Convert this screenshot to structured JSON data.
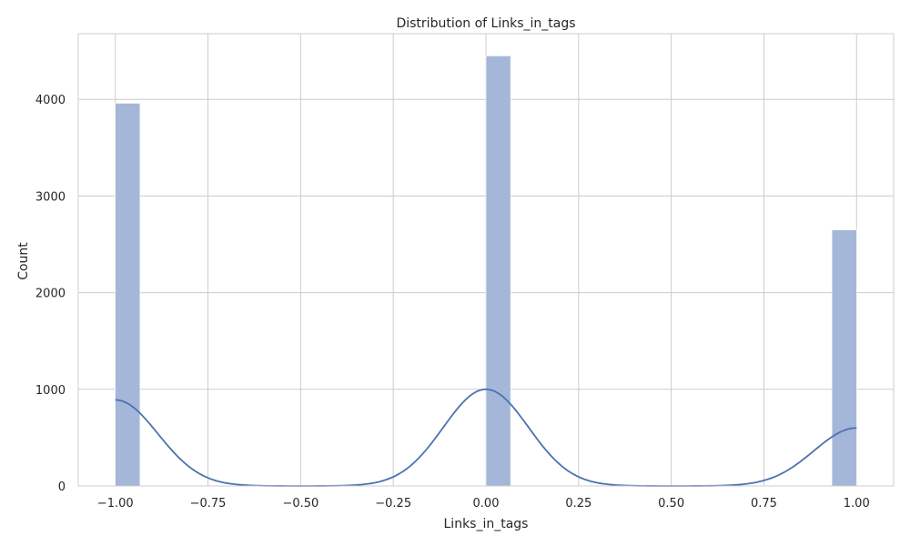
{
  "chart_data": {
    "type": "histogram",
    "title": "Distribution of Links_in_tags",
    "xlabel": "Links_in_tags",
    "ylabel": "Count",
    "xlim": [
      -1.1,
      1.1
    ],
    "ylim": [
      0,
      4680
    ],
    "xticks": [
      -1.0,
      -0.75,
      -0.5,
      -0.25,
      0.0,
      0.25,
      0.5,
      0.75,
      1.0
    ],
    "xtick_labels": [
      "−1.00",
      "−0.75",
      "−0.50",
      "−0.25",
      "0.00",
      "0.25",
      "0.50",
      "0.75",
      "1.00"
    ],
    "yticks": [
      0,
      1000,
      2000,
      3000,
      4000
    ],
    "ytick_labels": [
      "0",
      "1000",
      "2000",
      "3000",
      "4000"
    ],
    "grid": true,
    "colors": {
      "bar": "#a5b7d9",
      "kde": "#4c72b0",
      "grid": "#cccccc"
    },
    "bins": [
      {
        "x0": -1.0,
        "x1": -0.9333,
        "count": 3960
      },
      {
        "x0": 0.0,
        "x1": 0.0667,
        "count": 4450
      },
      {
        "x0": 0.9333,
        "x1": 1.0,
        "count": 2650
      }
    ],
    "kde": {
      "x_range": [
        -1.0,
        1.0
      ],
      "components": [
        {
          "center": -1.0,
          "peak": 890
        },
        {
          "center": 0.0,
          "peak": 1000
        },
        {
          "center": 1.0,
          "peak": 600
        }
      ],
      "bandwidth": 0.115
    }
  }
}
